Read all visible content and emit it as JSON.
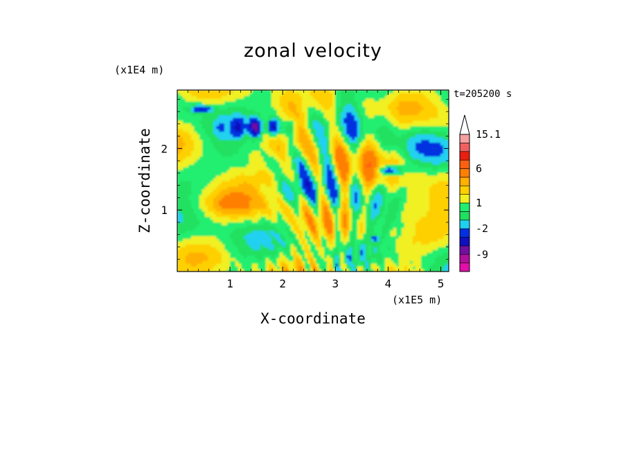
{
  "chart_data": {
    "type": "heatmap",
    "title": "zonal velocity",
    "xlabel": "X-coordinate",
    "ylabel": "Z-coordinate",
    "x_unit": "(x1E5 m)",
    "y_unit": "(x1E4 m)",
    "time_label": "t=205200 s",
    "xlim": [
      0,
      5.15
    ],
    "ylim": [
      0,
      2.95
    ],
    "x_ticks": [
      1,
      2,
      3,
      4,
      5
    ],
    "y_ticks": [
      1,
      2
    ],
    "colorbar": {
      "labels": [
        "15.1",
        "6",
        "1",
        "-2",
        "-9"
      ],
      "label_values": [
        15.1,
        6,
        1,
        -2,
        -9
      ],
      "levels": [
        -15,
        -12,
        -9,
        -6,
        -4,
        -2,
        -1,
        0,
        1,
        2,
        3,
        4,
        6,
        8,
        10,
        12,
        15.1
      ],
      "colors": [
        "#e010a8",
        "#b0109c",
        "#7010a0",
        "#1010c0",
        "#0030e0",
        "#20d0f0",
        "#20e060",
        "#20ee70",
        "#f0f020",
        "#ffd000",
        "#ffb000",
        "#ff8000",
        "#ff6010",
        "#e82010",
        "#f06060",
        "#f4a0a0"
      ],
      "extend_max_color": "#ffffff"
    },
    "dominant_field": "turbulent zonal velocity field with wave-like bands fanning out from x≈2.5–3.5 near the surface; negative cores near z≈2.3 at x≈1.3–2.0 and x≈4.0"
  }
}
